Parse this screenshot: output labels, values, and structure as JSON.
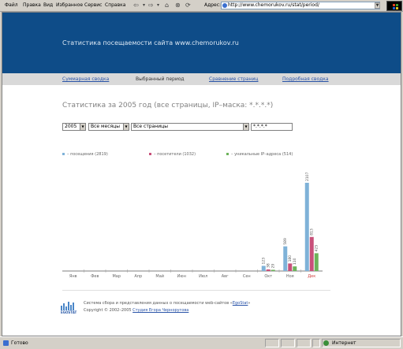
{
  "browser": {
    "menu": [
      "Файл",
      "Правка",
      "Вид",
      "Избранное",
      "Сервис",
      "Справка"
    ],
    "address_label": "Адрес:",
    "url": "http://www.chemorukov.ru/stat/period/"
  },
  "header": {
    "title": "Статистика посещаемости сайта www.chemorukov.ru"
  },
  "nav": [
    {
      "label": "Суммарная сводка",
      "active": false
    },
    {
      "label": "Выбранный период",
      "active": true
    },
    {
      "label": "Сравнение страниц",
      "active": false
    },
    {
      "label": "Подробная сводка",
      "active": false
    }
  ],
  "page": {
    "title": "Статистика за 2005 год (все страницы, IP–маска: *.*.*.*)"
  },
  "filters": {
    "year": "2005",
    "months": "Все месяцы",
    "pages": "Все страницы",
    "mask": "*.*.*.*"
  },
  "legend": [
    {
      "label": "– посещения (2819)",
      "color": "#7fb2d8"
    },
    {
      "label": "– посетители (1032)",
      "color": "#c8507a"
    },
    {
      "label": "– уникальные IP–адреса (514)",
      "color": "#6cb35a"
    }
  ],
  "chart_data": {
    "type": "bar",
    "categories": [
      "Янв",
      "Фев",
      "Мар",
      "Апр",
      "Май",
      "Июн",
      "Июл",
      "Авг",
      "Сен",
      "Окт",
      "Ноя",
      "Дек"
    ],
    "highlight_category": "Дек",
    "highlight_color": "#d04040",
    "series": [
      {
        "name": "посещения",
        "color": "#7fb2d8",
        "values": [
          0,
          0,
          0,
          0,
          0,
          0,
          0,
          0,
          0,
          123,
          589,
          2107
        ]
      },
      {
        "name": "посетители",
        "color": "#c8507a",
        "values": [
          0,
          0,
          0,
          0,
          0,
          0,
          0,
          0,
          0,
          38,
          180,
          813
        ]
      },
      {
        "name": "уникальные IP–адреса",
        "color": "#6cb35a",
        "values": [
          0,
          0,
          0,
          0,
          0,
          0,
          0,
          0,
          0,
          29,
          110,
          425
        ]
      }
    ],
    "ylim": [
      0,
      2107
    ],
    "grid": false,
    "legend_position": "top"
  },
  "footer": {
    "logo_text": "EGOSTAT",
    "line1_prefix": "Система сбора и представления данных о посещаемости web-сайтов «",
    "line1_link": "EgoStat",
    "line1_suffix": "»",
    "line2_prefix": "Copyright © 2002–2005 ",
    "line2_link": "Студия Егора Черноругова"
  },
  "status": {
    "text": "Готово",
    "zone": "Интернет"
  }
}
